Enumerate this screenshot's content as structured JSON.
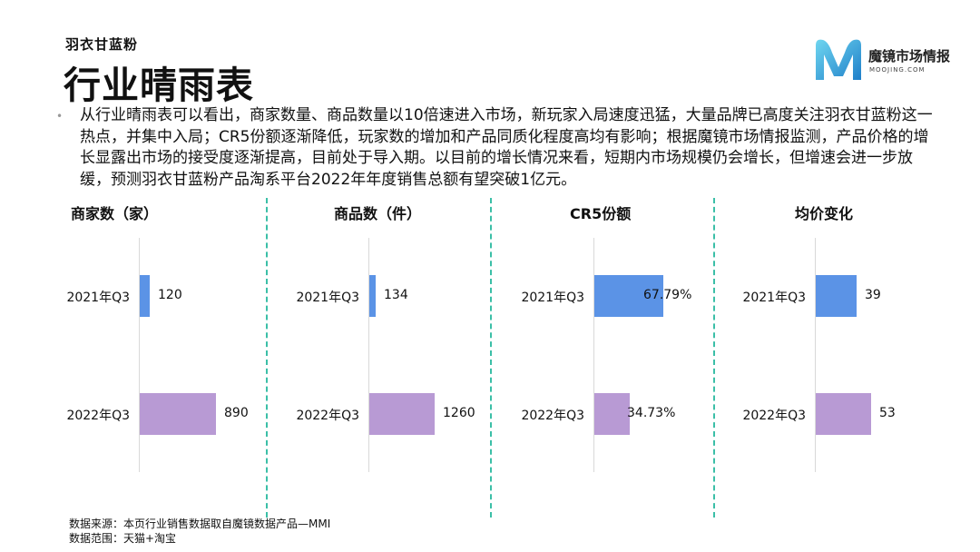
{
  "header": {
    "subtitle": "羽衣甘蓝粉",
    "title": "行业晴雨表",
    "logo_name": "魔镜市场情报",
    "logo_sub": "MOOJING.COM"
  },
  "summary": "从行业晴雨表可以看出，商家数量、商品数量以10倍速进入市场，新玩家入局速度迅猛，大量品牌已高度关注羽衣甘蓝粉这一热点，并集中入局；CR5份额逐渐降低，玩家数的增加和产品同质化程度高均有影响；根据魔镜市场情报监测，产品价格的增长显露出市场的接受度逐渐提高，目前处于导入期。以目前的增长情况来看，短期内市场规模仍会增长，但增速会进一步放缓，预测羽衣甘蓝粉产品淘系平台2022年年度销售总额有望突破1亿元。",
  "colors": {
    "series_2021": "#5b93e6",
    "series_2022": "#b89ad4",
    "divider": "#3bbfa7"
  },
  "chart_data": [
    {
      "type": "bar",
      "title": "商家数（家）",
      "categories": [
        "2021年Q3",
        "2022年Q3"
      ],
      "values": [
        120,
        890
      ],
      "value_labels": [
        "120",
        "890"
      ]
    },
    {
      "type": "bar",
      "title": "商品数（件）",
      "categories": [
        "2021年Q3",
        "2022年Q3"
      ],
      "values": [
        134,
        1260
      ],
      "value_labels": [
        "134",
        "1260"
      ]
    },
    {
      "type": "bar",
      "title": "CR5份额",
      "categories": [
        "2021年Q3",
        "2022年Q3"
      ],
      "values": [
        67.79,
        34.73
      ],
      "value_labels": [
        "67.79%",
        "34.73%"
      ]
    },
    {
      "type": "bar",
      "title": "均价变化",
      "categories": [
        "2021年Q3",
        "2022年Q3"
      ],
      "values": [
        39,
        53
      ],
      "value_labels": [
        "39",
        "53"
      ]
    }
  ],
  "footer": {
    "source": "数据来源：本页行业销售数据取自魔镜数据产品—MMI",
    "scope": "数据范围：天猫+淘宝"
  }
}
